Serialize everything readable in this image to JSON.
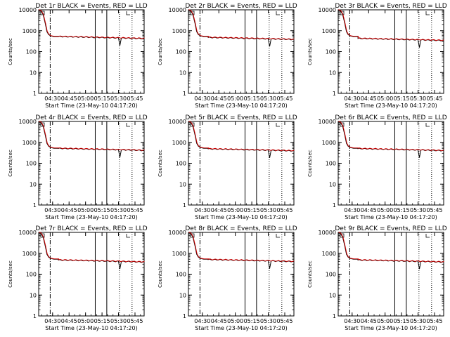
{
  "shared": {
    "type": "line",
    "ylabel": "Counts/sec",
    "xlabel": "Start Time (23-May-10 04:17:20)",
    "x_ticks": [
      "04:30",
      "04:45",
      "05:00",
      "05:15",
      "05:30",
      "05:45"
    ],
    "y_ticks": [
      "1",
      "10",
      "100",
      "1000",
      "10000"
    ],
    "y_scale": "log",
    "ylim": [
      1,
      10000
    ],
    "xlim_minutes_after_04:17:20": [
      0,
      96
    ],
    "series_names": [
      "Events",
      "LLD"
    ],
    "colors": {
      "events": "#000000",
      "lld": "#cc0000",
      "axes": "#000000"
    },
    "markers": {
      "dash_dot_x": 10.5,
      "solid_x": [
        51.5,
        62
      ],
      "dotted_x": [
        73.5,
        85
      ]
    }
  },
  "chart_data": [
    {
      "title": "Det 1r BLACK = Events, RED = LLD",
      "plateau": 420
    },
    {
      "title": "Det 2r BLACK = Events, RED = LLD",
      "plateau": 380
    },
    {
      "title": "Det 3r BLACK = Events, RED = LLD",
      "plateau": 340
    },
    {
      "title": "Det 4r BLACK = Events, RED = LLD",
      "plateau": 410
    },
    {
      "title": "Det 5r BLACK = Events, RED = LLD",
      "plateau": 390
    },
    {
      "title": "Det 6r BLACK = Events, RED = LLD",
      "plateau": 400
    },
    {
      "title": "Det 7r BLACK = Events, RED = LLD",
      "plateau": 380
    },
    {
      "title": "Det 8r BLACK = Events, RED = LLD",
      "plateau": 400
    },
    {
      "title": "Det 9r BLACK = Events, RED = LLD",
      "plateau": 380
    }
  ]
}
